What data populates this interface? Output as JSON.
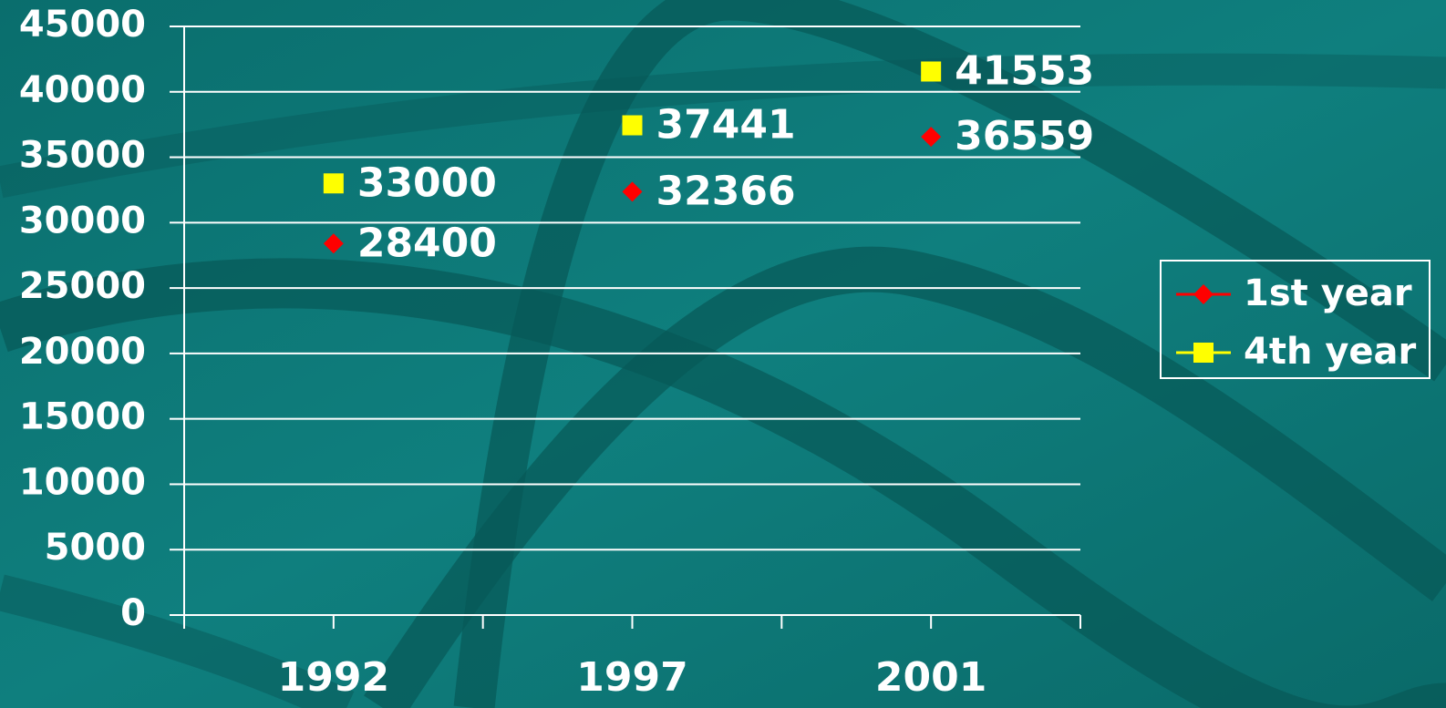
{
  "chart_data": {
    "type": "line",
    "lines": false,
    "categories": [
      "1992",
      "1997",
      "2001"
    ],
    "series": [
      {
        "name": "1st year",
        "color": "#ff0000",
        "marker": "diamond",
        "values": [
          28400,
          32366,
          36559
        ]
      },
      {
        "name": "4th year",
        "color": "#ffff00",
        "marker": "square",
        "values": [
          33000,
          37441,
          41553
        ]
      }
    ],
    "ylim": [
      0,
      45000
    ],
    "yticks": [
      0,
      5000,
      10000,
      15000,
      20000,
      25000,
      30000,
      35000,
      40000,
      45000
    ],
    "grid": true,
    "legend": "right"
  }
}
